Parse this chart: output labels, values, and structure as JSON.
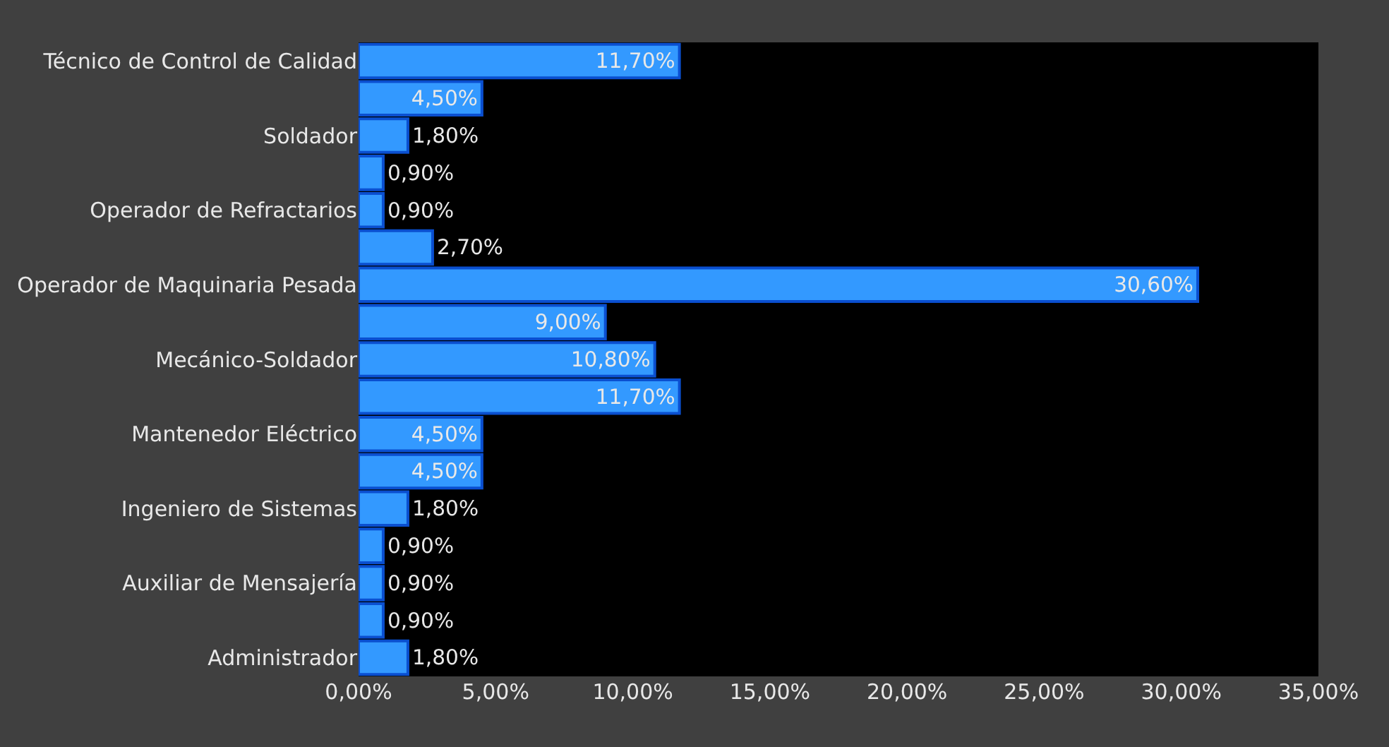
{
  "chart_data": {
    "type": "bar",
    "orientation": "horizontal",
    "categories": [
      "Técnico de Control de Calidad",
      null,
      "Soldador",
      null,
      "Operador de Refractarios",
      null,
      "Operador de Maquinaria Pesada",
      null,
      "Mecánico-Soldador",
      null,
      "Mantenedor Eléctrico",
      null,
      "Ingeniero de Sistemas",
      null,
      "Auxiliar de Mensajería",
      null,
      "Administrador"
    ],
    "values": [
      11.7,
      4.5,
      1.8,
      0.9,
      0.9,
      2.7,
      30.6,
      9.0,
      10.8,
      11.7,
      4.5,
      4.5,
      1.8,
      0.9,
      0.9,
      0.9,
      1.8
    ],
    "value_labels": [
      "11,70%",
      "4,50%",
      "1,80%",
      "0,90%",
      "0,90%",
      "2,70%",
      "30,60%",
      "9,00%",
      "10,80%",
      "11,70%",
      "4,50%",
      "4,50%",
      "1,80%",
      "0,90%",
      "0,90%",
      "0,90%",
      "1,80%"
    ],
    "color": "#3399ff",
    "xlim": [
      0,
      35
    ],
    "xticks": [
      {
        "value": 0,
        "label": "0,00%"
      },
      {
        "value": 5,
        "label": "5,00%"
      },
      {
        "value": 10,
        "label": "10,00%"
      },
      {
        "value": 15,
        "label": "15,00%"
      },
      {
        "value": 20,
        "label": "20,00%"
      },
      {
        "value": 25,
        "label": "25,00%"
      },
      {
        "value": 30,
        "label": "30,00%"
      },
      {
        "value": 35,
        "label": "35,00%"
      }
    ]
  }
}
